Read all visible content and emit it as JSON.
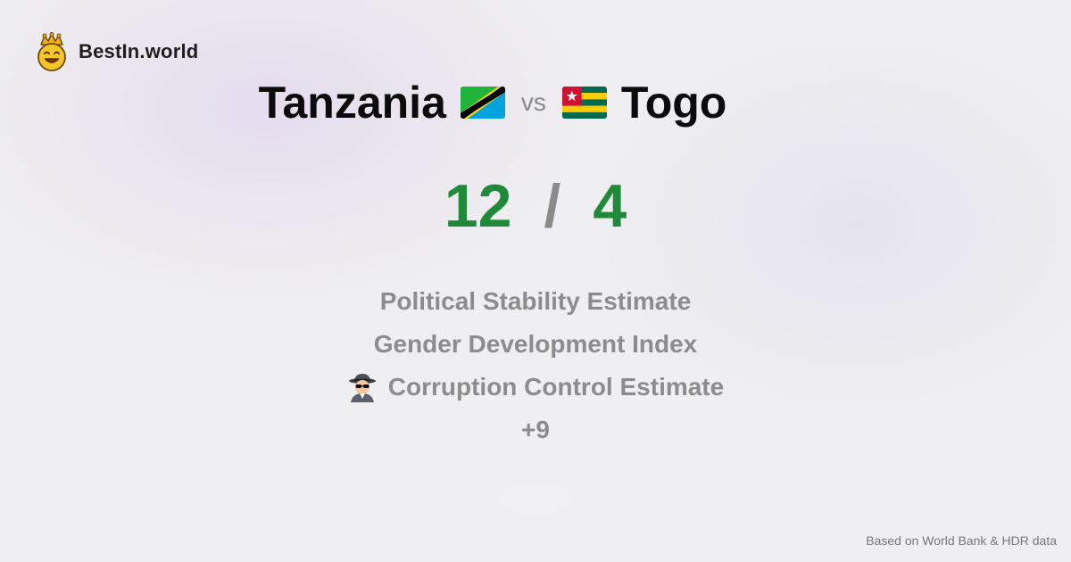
{
  "brand": {
    "name": "BestIn.world",
    "logo_icon": "crowned-smiley-icon"
  },
  "comparison": {
    "left": {
      "name": "Tanzania",
      "flag_icon": "tanzania-flag-icon"
    },
    "vs_label": "vs",
    "right": {
      "name": "Togo",
      "flag_icon": "togo-flag-icon"
    }
  },
  "score": {
    "left": "12",
    "separator": "/",
    "right": "4",
    "color": "#1f8a37"
  },
  "metrics": [
    {
      "label": "Political Stability Estimate"
    },
    {
      "label": "Gender Development Index"
    },
    {
      "label": "Corruption Control Estimate",
      "icon": "spy-icon"
    },
    {
      "label": "+9"
    }
  ],
  "footer": {
    "note": "Based on World Bank & HDR data"
  }
}
